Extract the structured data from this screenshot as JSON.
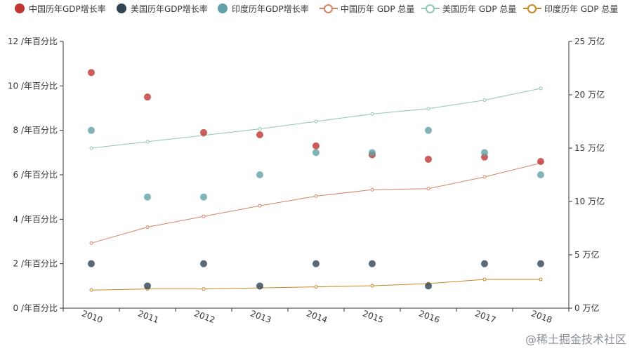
{
  "chart_data": {
    "type": "scatter+line",
    "categories": [
      "2010",
      "2011",
      "2012",
      "2013",
      "2014",
      "2015",
      "2016",
      "2017",
      "2018"
    ],
    "y_left": {
      "min": 0,
      "max": 12,
      "interval": 2,
      "unit": " /年百分比",
      "tick_labels": [
        "0 /年百分比",
        "2 /年百分比",
        "4 /年百分比",
        "6 /年百分比",
        "8 /年百分比",
        "10 /年百分比",
        "12 /年百分比"
      ]
    },
    "y_right": {
      "min": 0,
      "max": 25,
      "interval": 5,
      "unit": " 万亿",
      "tick_labels": [
        "0 万亿",
        "5 万亿",
        "10 万亿",
        "15 万亿",
        "20 万亿",
        "25 万亿"
      ]
    },
    "scatter_series": [
      {
        "name": "中国历年GDP增长率",
        "color": "#c23531",
        "axis": "left",
        "values": [
          10.6,
          9.5,
          7.9,
          7.8,
          7.3,
          6.9,
          6.7,
          6.8,
          6.6
        ]
      },
      {
        "name": "美国历年GDP增长率",
        "color": "#2f4554",
        "axis": "left",
        "values": [
          2,
          1,
          2,
          1,
          2,
          2,
          1,
          2,
          2
        ]
      },
      {
        "name": "印度历年GDP增长率",
        "color": "#61a0a8",
        "axis": "left",
        "values": [
          8,
          5,
          5,
          6,
          7,
          7,
          8,
          7,
          6
        ]
      }
    ],
    "line_series": [
      {
        "name": "中国历年 GDP 总量",
        "color": "#d48265",
        "axis": "right",
        "values": [
          6.1,
          7.6,
          8.6,
          9.6,
          10.5,
          11.1,
          11.2,
          12.3,
          13.6
        ]
      },
      {
        "name": "美国历年 GDP 总量",
        "color": "#91c7ae",
        "axis": "right",
        "values": [
          15.0,
          15.6,
          16.2,
          16.8,
          17.5,
          18.2,
          18.7,
          19.5,
          20.6
        ]
      },
      {
        "name": "印度历年 GDP 总量",
        "color": "#ca8622",
        "axis": "right",
        "values": [
          1.7,
          1.8,
          1.8,
          1.9,
          2.0,
          2.1,
          2.3,
          2.7,
          2.7
        ]
      }
    ]
  },
  "watermark": "@稀土掘金技术社区"
}
